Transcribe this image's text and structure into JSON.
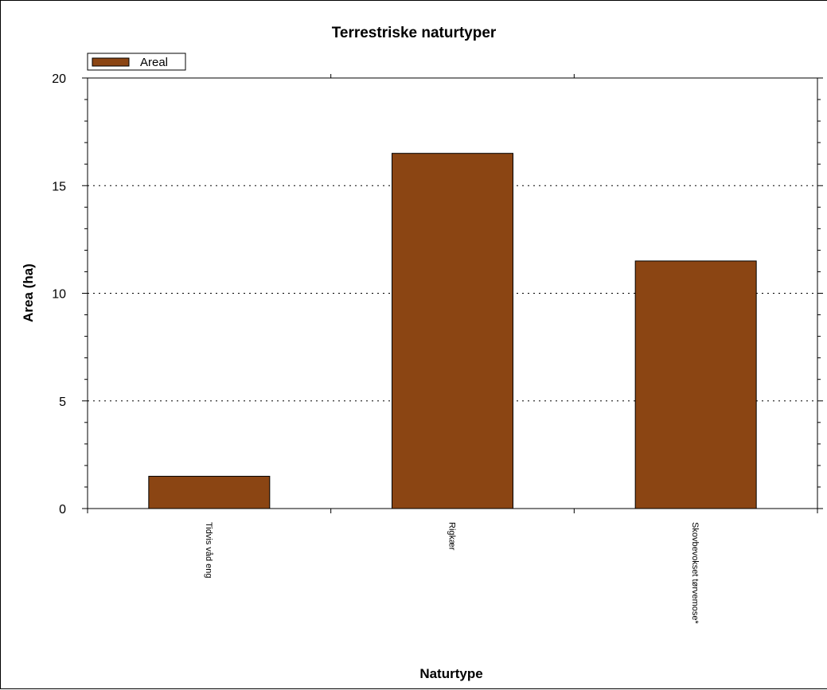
{
  "chart_data": {
    "type": "bar",
    "title": "Terrestriske naturtyper",
    "xlabel": "Naturtype",
    "ylabel": "Area (ha)",
    "categories": [
      "Tidvis våd eng",
      "Rigkær",
      "Skovbevokset tørvemose*"
    ],
    "series": [
      {
        "name": "Areal",
        "values": [
          1.5,
          16.5,
          11.5
        ],
        "color": "#8B4513"
      }
    ],
    "ylim": [
      0,
      20
    ],
    "yticks": [
      0,
      5,
      10,
      15,
      20
    ],
    "grid": "horizontal-dotted",
    "legend": "top-left"
  }
}
